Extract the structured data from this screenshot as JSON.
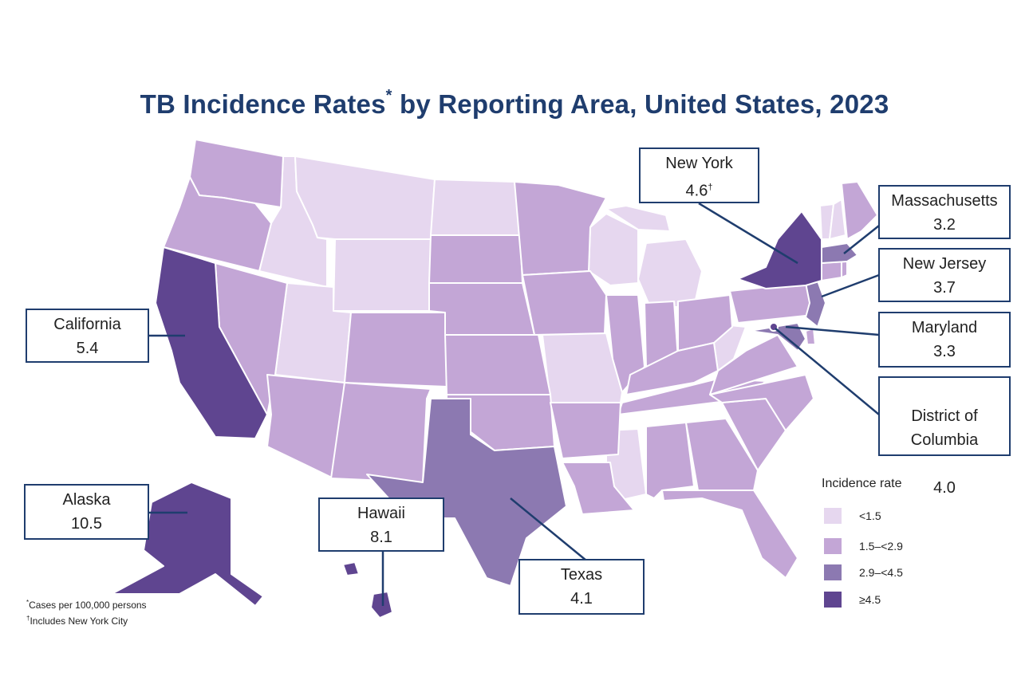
{
  "title": {
    "text": "TB Incidence Rates",
    "marker": "*",
    "rest": " by Reporting Area, United States, 2023"
  },
  "colors": {
    "lt_1_5": "#e6d7ef",
    "r1_5_2_9": "#c3a6d6",
    "r2_9_4_5": "#8c79b1",
    "ge_4_5": "#5f4590",
    "border": "#1f3d6e"
  },
  "callouts": [
    {
      "name": "New York",
      "value": "4.6",
      "mark": "†"
    },
    {
      "name": "Massachusetts",
      "value": "3.2",
      "mark": ""
    },
    {
      "name": "New Jersey",
      "value": "3.7",
      "mark": ""
    },
    {
      "name": "Maryland",
      "value": "3.3",
      "mark": ""
    },
    {
      "name": "District of\nColumbia",
      "value": "4.0",
      "mark": ""
    },
    {
      "name": "California",
      "value": "5.4",
      "mark": ""
    },
    {
      "name": "Alaska",
      "value": "10.5",
      "mark": ""
    },
    {
      "name": "Hawaii",
      "value": "8.1",
      "mark": ""
    },
    {
      "name": "Texas",
      "value": "4.1",
      "mark": ""
    }
  ],
  "legend": {
    "title": "Incidence rate",
    "items": [
      {
        "label": "<1.5",
        "color": "#e6d7ef"
      },
      {
        "label": "1.5–<2.9",
        "color": "#c3a6d6"
      },
      {
        "label": "2.9–<4.5",
        "color": "#8c79b1"
      },
      {
        "label": "≥4.5",
        "color": "#5f4590"
      }
    ]
  },
  "footnotes": [
    {
      "mark": "*",
      "text": "Cases per 100,000 persons"
    },
    {
      "mark": "†",
      "text": "Includes New York City"
    }
  ]
}
